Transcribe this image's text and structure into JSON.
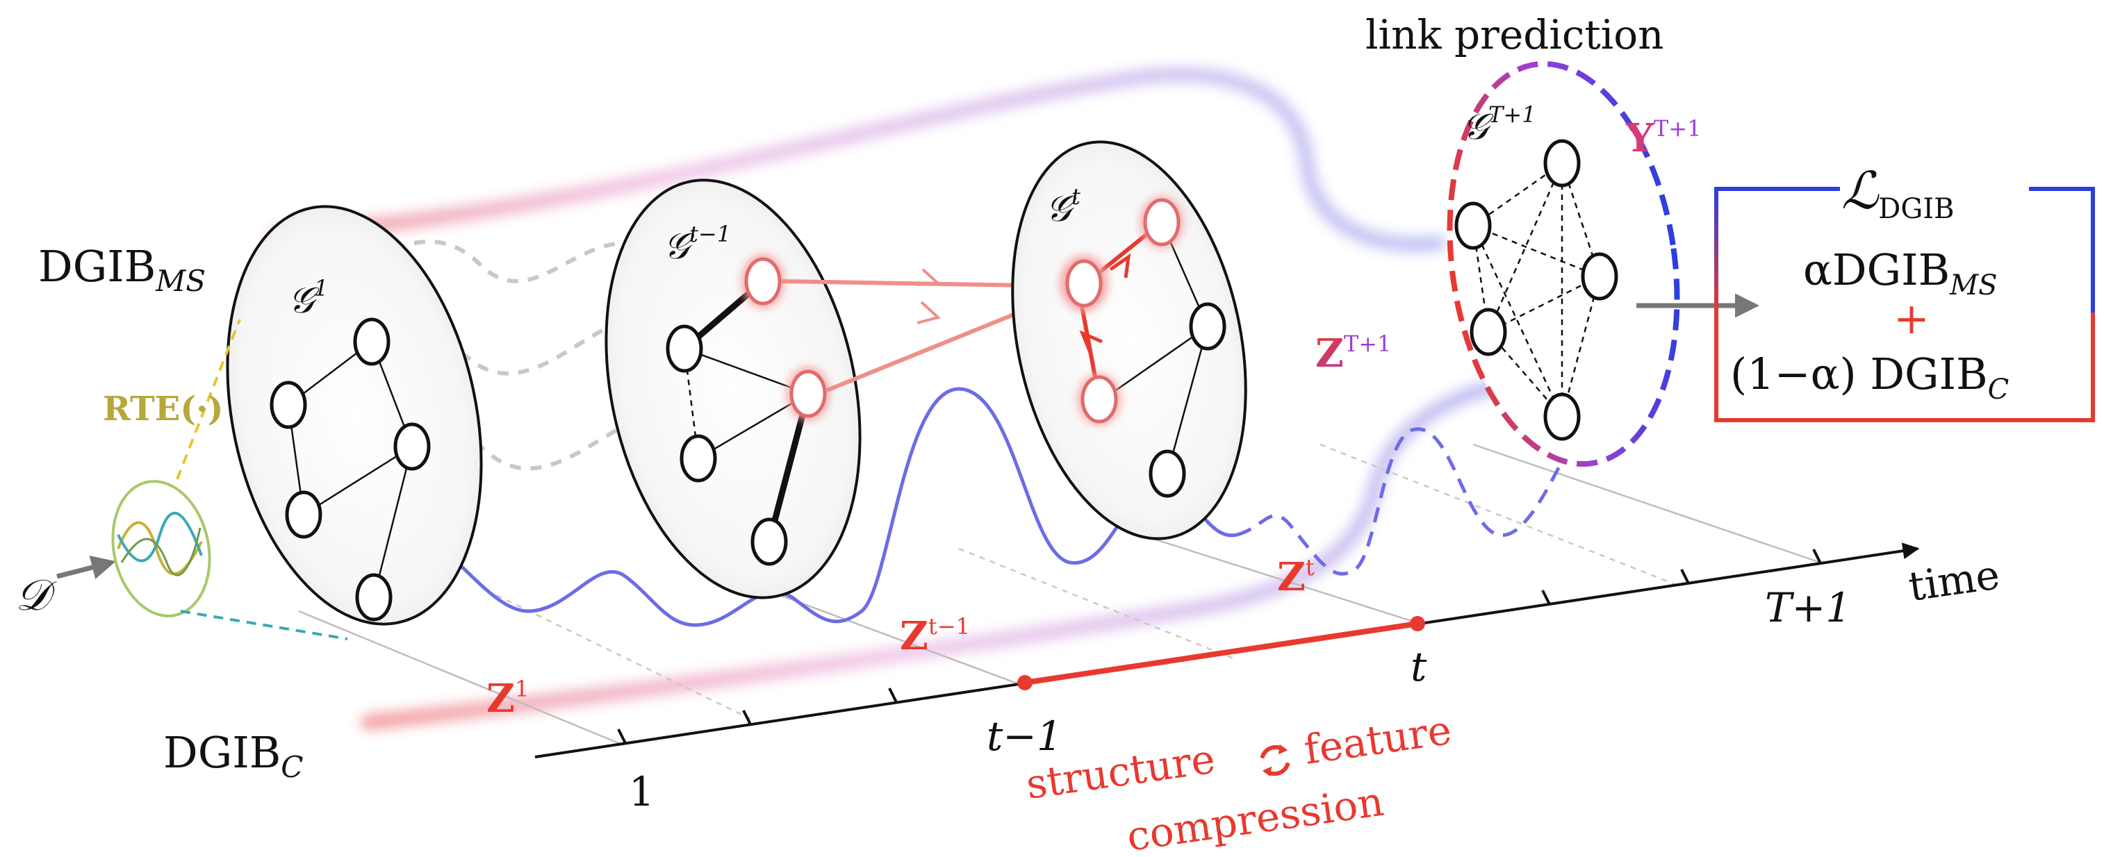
{
  "labels": {
    "link_prediction": "link prediction",
    "dgib_ms": "DGIB",
    "dgib_ms_sub": "MS",
    "dgib_c": "DGIB",
    "dgib_c_sub": "C",
    "rte": "RTE(·)",
    "dataset": "𝒟",
    "time": "time",
    "structure": "structure",
    "feature": "feature",
    "compression": "compression"
  },
  "graphs": {
    "g1": {
      "base": "𝒢",
      "sup": "1"
    },
    "g_t_minus_1": {
      "base": "𝒢",
      "sup": "t−1"
    },
    "g_t": {
      "base": "𝒢",
      "sup": "t"
    },
    "g_T_plus_1": {
      "base": "𝒢",
      "sup": "T+1"
    }
  },
  "latents": {
    "z1": {
      "base": "Z",
      "sup": "1"
    },
    "z_t_minus_1": {
      "base": "Z",
      "sup": "t−1"
    },
    "z_t": {
      "base": "Z",
      "sup": "t"
    },
    "z_T_plus_1": {
      "base": "Z",
      "sup": "T+1"
    },
    "y_T_plus_1": {
      "base": "Y",
      "sup": "T+1"
    }
  },
  "axis_ticks": {
    "t1": "1",
    "t_minus_1": "t−1",
    "t": "t",
    "T_plus_1": "T+1"
  },
  "loss_box": {
    "title": "ℒ",
    "title_sub": "DGIB",
    "term1_prefix": "αDGIB",
    "term1_sub": "MS",
    "plus": "+",
    "term2_prefix": "(1−α) DGIB",
    "term2_sub": "C"
  },
  "colors": {
    "red": "#e8392f",
    "blue": "#2b3fe0",
    "purple": "#9b3fd6",
    "magenta": "#c43aa0",
    "wave_blue": "#6c6ce8",
    "rte_gold": "#c9b037",
    "cyan": "#3aa9b4"
  }
}
